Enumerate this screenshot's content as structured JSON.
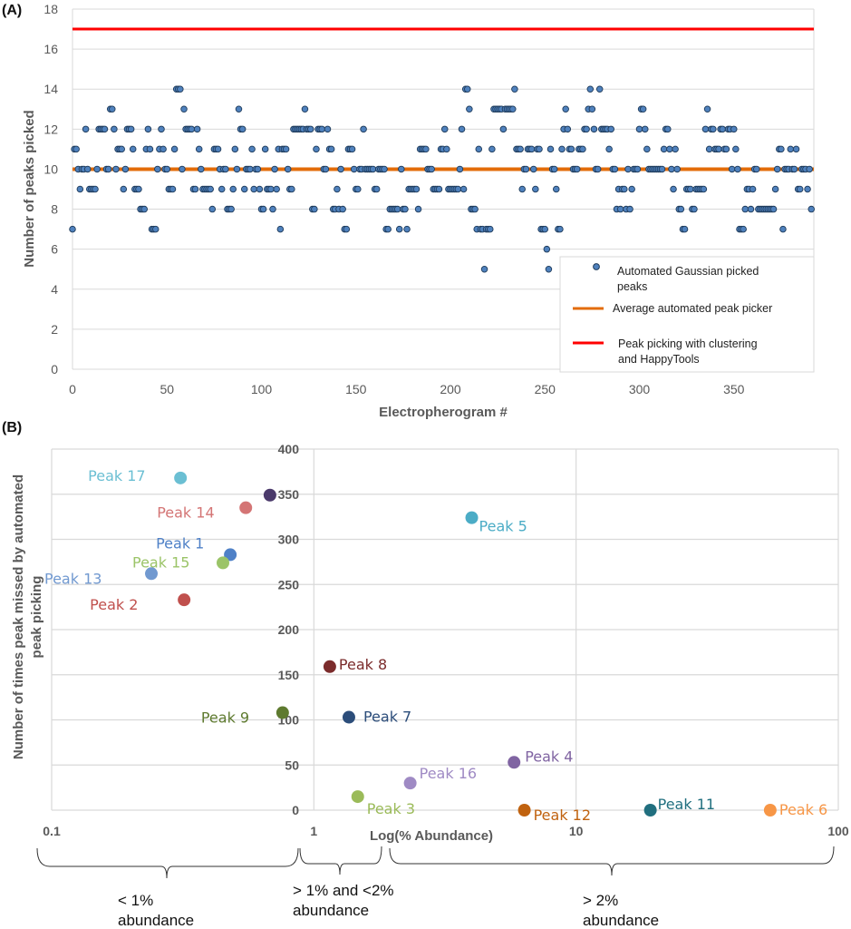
{
  "chart_data": [
    {
      "panel_label": "(A)",
      "type": "scatter",
      "xlabel": "Electropherogram #",
      "ylabel": "Number of peaks picked",
      "xlim": [
        0,
        392
      ],
      "ylim": [
        0,
        18
      ],
      "xticks": [
        "0",
        "50",
        "100",
        "150",
        "200",
        "250",
        "300",
        "350"
      ],
      "yticks": [
        "0",
        "2",
        "4",
        "6",
        "8",
        "10",
        "12",
        "14",
        "16",
        "18"
      ],
      "grid": true,
      "legend_position": "bottom-right",
      "series": [
        {
          "name": "Automated Gaussian picked peaks",
          "type": "scatter",
          "color": "#4F81BD",
          "values": [
            7,
            11,
            11,
            10,
            9,
            10,
            10,
            12,
            10,
            9,
            9,
            9,
            9,
            10,
            12,
            12,
            12,
            12,
            10,
            10,
            13,
            13,
            12,
            10,
            11,
            11,
            11,
            9,
            10,
            12,
            12,
            12,
            11,
            9,
            9,
            9,
            8,
            8,
            8,
            11,
            12,
            11,
            7,
            7,
            7,
            10,
            11,
            12,
            11,
            10,
            10,
            9,
            9,
            9,
            11,
            14,
            14,
            14,
            10,
            13,
            12,
            12,
            12,
            12,
            9,
            9,
            12,
            11,
            10,
            9,
            9,
            9,
            9,
            9,
            8,
            11,
            11,
            11,
            10,
            9,
            10,
            10,
            8,
            8,
            8,
            9,
            11,
            10,
            13,
            12,
            12,
            9,
            10,
            10,
            10,
            11,
            9,
            10,
            10,
            9,
            8,
            8,
            11,
            9,
            9,
            9,
            8,
            10,
            9,
            11,
            7,
            11,
            11,
            11,
            10,
            9,
            9,
            12,
            12,
            12,
            12,
            12,
            12,
            13,
            12,
            12,
            12,
            8,
            8,
            11,
            12,
            12,
            12,
            10,
            10,
            12,
            11,
            11,
            8,
            8,
            9,
            8,
            10,
            8,
            7,
            7,
            11,
            11,
            11,
            10,
            9,
            9,
            10,
            10,
            12,
            10,
            10,
            10,
            10,
            10,
            9,
            9,
            10,
            10,
            10,
            10,
            7,
            7,
            8,
            8,
            8,
            8,
            8,
            7,
            10,
            8,
            8,
            7,
            9,
            9,
            9,
            9,
            9,
            8,
            11,
            11,
            11,
            11,
            10,
            10,
            10,
            9,
            9,
            9,
            9,
            11,
            11,
            12,
            11,
            9,
            9,
            9,
            9,
            9,
            9,
            10,
            12,
            9,
            14,
            14,
            13,
            8,
            8,
            8,
            7,
            11,
            7,
            7,
            5,
            7,
            7,
            7,
            11,
            13,
            13,
            13,
            13,
            13,
            12,
            13,
            13,
            13,
            13,
            13,
            14,
            11,
            11,
            11,
            9,
            10,
            10,
            11,
            11,
            11,
            10,
            9,
            11,
            11,
            7,
            7,
            7,
            6,
            5,
            11,
            10,
            10,
            9,
            7,
            7,
            11,
            12,
            13,
            12,
            11,
            11,
            10,
            10,
            10,
            11,
            11,
            11,
            12,
            12,
            13,
            14,
            13,
            12,
            10,
            10,
            14,
            12,
            12,
            12,
            12,
            11,
            12,
            10,
            10,
            8,
            9,
            8,
            9,
            9,
            8,
            10,
            8,
            9,
            10,
            10,
            10,
            12,
            13,
            13,
            12,
            11,
            10,
            10,
            10,
            10,
            10,
            10,
            10,
            10,
            11,
            12,
            12,
            11,
            10,
            9,
            11,
            10,
            8,
            8,
            7,
            7,
            9,
            9,
            9,
            8,
            8,
            9,
            9,
            9,
            9,
            9,
            12,
            13,
            11,
            12,
            12,
            11,
            11,
            11,
            12,
            12,
            11,
            11,
            12,
            12,
            10,
            12,
            11,
            10,
            7,
            7,
            7,
            8,
            9,
            9,
            8,
            9,
            10,
            10,
            8,
            8,
            8,
            8,
            8,
            8,
            8,
            8,
            8,
            9,
            10,
            11,
            11,
            7,
            10,
            10,
            10,
            11,
            10,
            10,
            11,
            9,
            9,
            10,
            10,
            10,
            9,
            10,
            8
          ]
        },
        {
          "name": "Average automated peak picker",
          "type": "hline",
          "color": "#E36C09",
          "value": 10
        },
        {
          "name": "Peak picking with clustering and HappyTools",
          "type": "hline",
          "color": "#FF0000",
          "value": 17
        }
      ]
    },
    {
      "panel_label": "(B)",
      "type": "scatter",
      "xlabel": "Log(% Abundance)",
      "ylabel": "Number of times peak missed by automated peak picking",
      "x_scale": "log",
      "xlim": [
        0.1,
        100
      ],
      "ylim": [
        0,
        400
      ],
      "xticks": [
        "0.1",
        "1",
        "10",
        "100"
      ],
      "yticks": [
        "0",
        "50",
        "100",
        "150",
        "200",
        "250",
        "300",
        "350",
        "400"
      ],
      "grid": true,
      "points": [
        {
          "label": "Peak 17",
          "x": 0.31,
          "y": 368,
          "color": "#6BBFD3"
        },
        {
          "label": "Peak 14",
          "x": 0.55,
          "y": 335,
          "color": "#D47575"
        },
        {
          "label": "",
          "x": 0.68,
          "y": 349,
          "color": "#4B3A6B"
        },
        {
          "label": "Peak 1",
          "x": 0.48,
          "y": 283,
          "color": "#4F81C7"
        },
        {
          "label": "Peak 15",
          "x": 0.45,
          "y": 274,
          "color": "#9BC468"
        },
        {
          "label": "Peak 13",
          "x": 0.24,
          "y": 262,
          "color": "#7199D0"
        },
        {
          "label": "Peak 2",
          "x": 0.32,
          "y": 233,
          "color": "#C0504D"
        },
        {
          "label": "Peak 5",
          "x": 4.0,
          "y": 324,
          "color": "#4BACC6"
        },
        {
          "label": "Peak 8",
          "x": 1.15,
          "y": 159,
          "color": "#7B2C2C"
        },
        {
          "label": "Peak 9",
          "x": 0.76,
          "y": 108,
          "color": "#5E7A2F"
        },
        {
          "label": "Peak 7",
          "x": 1.36,
          "y": 103,
          "color": "#2C4D7A"
        },
        {
          "label": "Peak 16",
          "x": 2.33,
          "y": 30,
          "color": "#9F8AC4"
        },
        {
          "label": "Peak 4",
          "x": 5.8,
          "y": 53,
          "color": "#8064A2"
        },
        {
          "label": "Peak 3",
          "x": 1.47,
          "y": 15,
          "color": "#9BBB59"
        },
        {
          "label": "Peak 12",
          "x": 6.35,
          "y": 0,
          "color": "#C0620F"
        },
        {
          "label": "Peak 11",
          "x": 19.2,
          "y": 0,
          "color": "#216F7F"
        },
        {
          "label": "Peak 6",
          "x": 55,
          "y": 0,
          "color": "#F79646"
        }
      ],
      "annotations": [
        {
          "line1": "< 1%",
          "line2": "abundance"
        },
        {
          "line1": "> 1% and <2%",
          "line2": "abundance"
        },
        {
          "line1": "> 2%",
          "line2": "abundance"
        }
      ]
    }
  ]
}
